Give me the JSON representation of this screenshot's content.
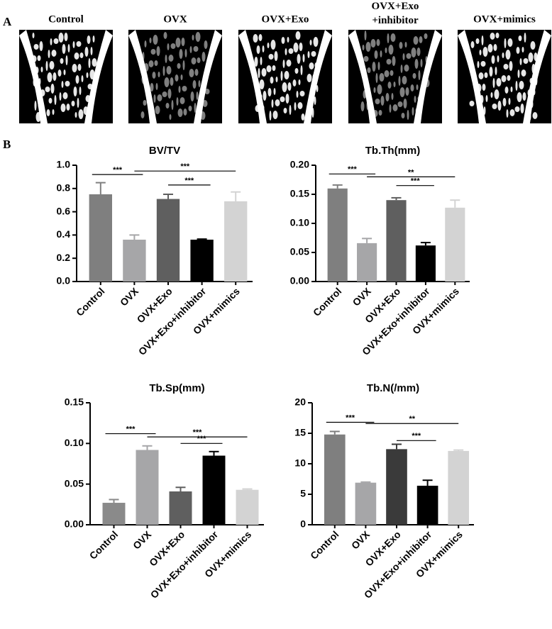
{
  "panel_a": {
    "label": "A",
    "images": [
      "Control",
      "OVX",
      "OVX+Exo",
      "OVX+Exo\n+inhibitor",
      "OVX+mimics"
    ]
  },
  "panel_b": {
    "label": "B"
  },
  "chart_data": [
    {
      "type": "bar",
      "title": "BV/TV",
      "categories": [
        "Control",
        "OVX",
        "OVX+Exo",
        "OVX+Exo+inhibitor",
        "OVX+mimics"
      ],
      "values": [
        0.75,
        0.36,
        0.71,
        0.36,
        0.69
      ],
      "errors": [
        0.1,
        0.04,
        0.04,
        0.005,
        0.08
      ],
      "colors": [
        "#7f7f7f",
        "#a6a6a8",
        "#5f5f5f",
        "#000000",
        "#d3d3d3"
      ],
      "ylim": [
        0,
        1
      ],
      "yticks": [
        {
          "value": 0,
          "label": "0.0"
        },
        0.2,
        0.4,
        0.6,
        0.8,
        {
          "value": 1,
          "label": "1.0"
        }
      ],
      "annotations": [
        {
          "label": "***",
          "between": [
            "Control",
            "OVX"
          ],
          "y": 0.92
        },
        {
          "label": "***",
          "between": [
            "OVX",
            "OVX+mimics"
          ],
          "y": 0.95
        },
        {
          "label": "***",
          "between": [
            "OVX+Exo",
            "OVX+Exo+inhibitor"
          ],
          "y": 0.83
        }
      ]
    },
    {
      "type": "bar",
      "title": "Tb.Th(mm)",
      "categories": [
        "Control",
        "OVX",
        "OVX+Exo",
        "OVX+Exo+inhibitor",
        "OVX+mimics"
      ],
      "values": [
        0.16,
        0.066,
        0.14,
        0.062,
        0.127
      ],
      "errors": [
        0.006,
        0.008,
        0.004,
        0.005,
        0.013
      ],
      "colors": [
        "#7f7f7f",
        "#a6a6a8",
        "#5f5f5f",
        "#000000",
        "#d3d3d3"
      ],
      "ylim": [
        0,
        0.2
      ],
      "yticks": [
        {
          "value": 0,
          "label": "0.00"
        },
        0.05,
        {
          "value": 0.1,
          "label": "0.10"
        },
        0.15,
        {
          "value": 0.2,
          "label": "0.20"
        }
      ],
      "annotations": [
        {
          "label": "***",
          "between": [
            "Control",
            "OVX"
          ],
          "y": 0.185
        },
        {
          "label": "**",
          "between": [
            "OVX",
            "OVX+mimics"
          ],
          "y": 0.18
        },
        {
          "label": "***",
          "between": [
            "OVX+Exo",
            "OVX+Exo+inhibitor"
          ],
          "y": 0.165
        }
      ]
    },
    {
      "type": "bar",
      "title": "Tb.Sp(mm)",
      "categories": [
        "Control",
        "OVX",
        "OVX+Exo",
        "OVX+Exo+inhibitor",
        "OVX+mimics"
      ],
      "values": [
        0.027,
        0.092,
        0.041,
        0.085,
        0.043
      ],
      "errors": [
        0.004,
        0.005,
        0.005,
        0.005,
        0.001
      ],
      "colors": [
        "#8a8a8a",
        "#a6a6a8",
        "#5f5f5f",
        "#000000",
        "#d3d3d3"
      ],
      "ylim": [
        0,
        0.15
      ],
      "yticks": [
        {
          "value": 0,
          "label": "0.00"
        },
        0.05,
        {
          "value": 0.1,
          "label": "0.10"
        },
        0.15
      ],
      "annotations": [
        {
          "label": "***",
          "between": [
            "Control",
            "OVX"
          ],
          "y": 0.112
        },
        {
          "label": "***",
          "between": [
            "OVX",
            "OVX+mimics"
          ],
          "y": 0.108
        },
        {
          "label": "***",
          "between": [
            "OVX+Exo",
            "OVX+Exo+inhibitor"
          ],
          "y": 0.1
        }
      ]
    },
    {
      "type": "bar",
      "title": "Tb.N(/mm)",
      "categories": [
        "Control",
        "OVX",
        "OVX+Exo",
        "OVX+Exo+inhibitor",
        "OVX+mimics"
      ],
      "values": [
        14.8,
        6.9,
        12.4,
        6.4,
        12.1
      ],
      "errors": [
        0.5,
        0.1,
        0.8,
        0.9,
        0.15
      ],
      "colors": [
        "#7f7f7f",
        "#a6a6a8",
        "#3a3a3a",
        "#000000",
        "#d3d3d3"
      ],
      "ylim": [
        0,
        20
      ],
      "yticks": [
        0,
        5,
        10,
        15,
        20
      ],
      "annotations": [
        {
          "label": "***",
          "between": [
            "Control",
            "OVX"
          ],
          "y": 16.8
        },
        {
          "label": "**",
          "between": [
            "OVX",
            "OVX+mimics"
          ],
          "y": 16.6
        },
        {
          "label": "***",
          "between": [
            "OVX+Exo",
            "OVX+Exo+inhibitor"
          ],
          "y": 13.8
        }
      ]
    }
  ]
}
